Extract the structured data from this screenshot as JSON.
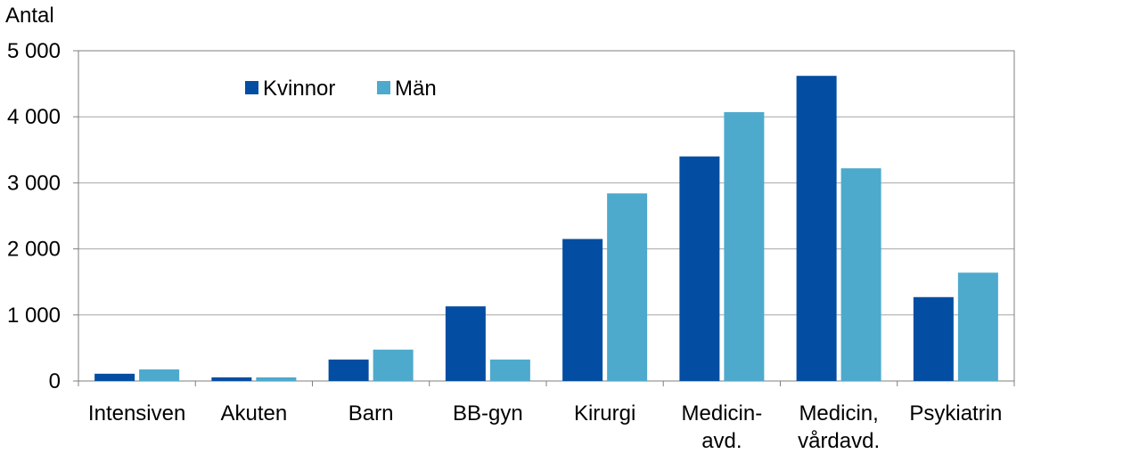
{
  "chart_data": {
    "type": "bar",
    "title": "",
    "xlabel": "",
    "ylabel": "Antal",
    "ylim": [
      0,
      5000
    ],
    "yticks": [
      0,
      1000,
      2000,
      3000,
      4000,
      5000
    ],
    "ytick_labels": [
      "0",
      "1 000",
      "2 000",
      "3 000",
      "4 000",
      "5 000"
    ],
    "grid": true,
    "legend_position": "top-left",
    "categories": [
      [
        "Intensiven"
      ],
      [
        "Akuten"
      ],
      [
        "Barn"
      ],
      [
        "BB-gyn"
      ],
      [
        "Kirurgi"
      ],
      [
        "Medicin-",
        "avd."
      ],
      [
        "Medicin,",
        "vårdavd."
      ],
      [
        "Psykiatrin"
      ]
    ],
    "series": [
      {
        "name": "Kvinnor",
        "color": "#034ea2",
        "values": [
          110,
          55,
          325,
          1130,
          2150,
          3400,
          4620,
          1270
        ]
      },
      {
        "name": "Män",
        "color": "#4daacd",
        "values": [
          175,
          55,
          475,
          325,
          2840,
          4070,
          3220,
          1640
        ]
      }
    ]
  }
}
